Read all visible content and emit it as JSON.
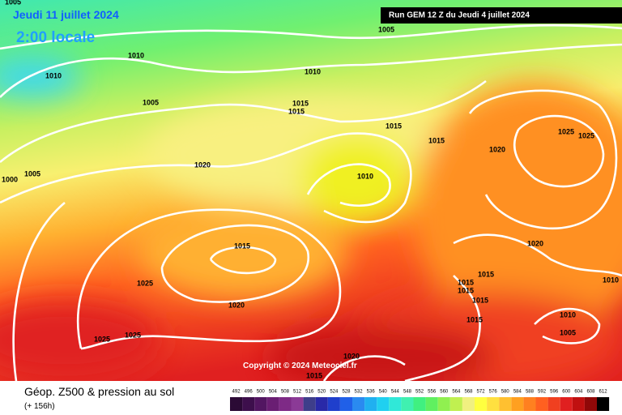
{
  "header": {
    "date": "Jeudi 11 juillet 2024",
    "time": "2:00 locale",
    "run": "Run GEM 12 Z du Jeudi 4 juillet 2024"
  },
  "footer": {
    "title": "Géop. Z500 & pression au sol",
    "lead": "(+ 156h)",
    "copyright": "Copyright © 2024 Meteociel.fr"
  },
  "isobar_labels": [
    1005,
    1005,
    1010,
    1010,
    1010,
    1005,
    1015,
    1015,
    1015,
    1015,
    1025,
    1025,
    1020,
    1020,
    1005,
    1000,
    1010,
    1015,
    1020,
    1025,
    1015,
    1015,
    1015,
    1015,
    1020,
    1015,
    1010,
    1010,
    1005,
    1025,
    1025,
    1020,
    1015
  ],
  "scale": {
    "values": [
      492,
      496,
      500,
      504,
      508,
      512,
      516,
      520,
      524,
      528,
      532,
      536,
      540,
      544,
      548,
      552,
      556,
      560,
      564,
      568,
      572,
      576,
      580,
      584,
      588,
      592,
      596,
      600,
      604,
      608,
      612
    ],
    "colors": [
      "#2b0a35",
      "#3d0f4c",
      "#521661",
      "#6a1e73",
      "#7e2a86",
      "#8b3a96",
      "#3e3e8a",
      "#2929a8",
      "#1f3fcc",
      "#2060e8",
      "#2a8af0",
      "#20b0f0",
      "#20d0f0",
      "#30e8d8",
      "#40f0b0",
      "#40f080",
      "#60f060",
      "#90f050",
      "#c0f050",
      "#f0f080",
      "#ffff40",
      "#ffe040",
      "#ffc030",
      "#ffa020",
      "#ff8020",
      "#ff6020",
      "#f04020",
      "#e02020",
      "#c01010",
      "#900808",
      "#000000"
    ]
  }
}
